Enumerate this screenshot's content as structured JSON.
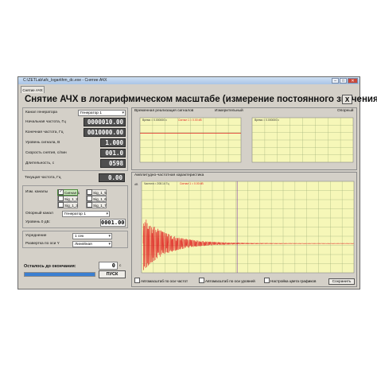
{
  "window": {
    "title": "C:\\ZETLab\\afc_logarithm_dc.exe - Снятие АЧХ",
    "tab": "Снятие АЧХ",
    "heading": "Снятие АЧХ в логарифмическом масштабе (измерение постоянного значения)",
    "close_label": "X"
  },
  "left": {
    "generator_label": "Канал генератора",
    "generator_value": "Генератор 1",
    "fstart_label": "Начальная частота, Гц",
    "fstart_value": "0000010.00",
    "fend_label": "Конечная частота, Гц",
    "fend_value": "0010000.00",
    "level_label": "Уровень сигнала, В",
    "level_value": "1.000",
    "speed_label": "Скорость снятия, с/лин",
    "speed_value": "001.0",
    "duration_label": "Длительность, с",
    "duration_value": "0598",
    "curfreq_label": "Текущая частота, Гц",
    "curfreq_value": "0.00",
    "channels_label": "Изм. каналы",
    "channels": [
      {
        "label": "Сигнал 1",
        "checked": true
      },
      {
        "label": "Sig_1_5",
        "checked": false
      },
      {
        "label": "Sig_1_2",
        "checked": false
      },
      {
        "label": "Sig_1_6",
        "checked": false
      },
      {
        "label": "Sig_1_3",
        "checked": false
      },
      {
        "label": "Sig_1_7",
        "checked": false
      },
      {
        "label": "Sig_1_4",
        "checked": false
      },
      {
        "label": "Sig_1_8",
        "checked": false
      }
    ],
    "ref_label": "Опорный канал",
    "ref_value": "Генератор 1",
    "zero_label": "Уровень 0 дБ:",
    "zero_value": "0001.00",
    "avg_label": "Усреднение",
    "avg_value": "1 сек",
    "axis_label": "Развертка по оси Y",
    "axis_value": "Линейная",
    "remaining_label": "Осталось до окончания:",
    "remaining_value": "0",
    "remaining_unit": "с",
    "start_button": "ПУСК"
  },
  "plots": {
    "time_title": "Временная реализация сигналов",
    "measure_label": "Измерительный",
    "ref_label": "Опорный",
    "time_left_legend": "Время = 0.000000 с",
    "time_left_signal": "Сигнал 1 = 0.00 dB",
    "time_right_legend": "Время = 0.000000 с",
    "afc_title": "Амплитудно-частотная характеристика",
    "afc_legend": "Частота = 208.14 Гц",
    "afc_signal": "Сигнал 1 = 0.00 dB",
    "afc_unit": "dB",
    "trace_color": "#e02020",
    "grid_color": "#9fb07a",
    "plot_bg": "#f6f7b8"
  },
  "bottom": {
    "auto_freq": "Автомасштаб по оси частот",
    "auto_level": "Автомасштаб по оси уровней",
    "colors": "Настройка цвета графиков",
    "save": "Сохранить"
  }
}
